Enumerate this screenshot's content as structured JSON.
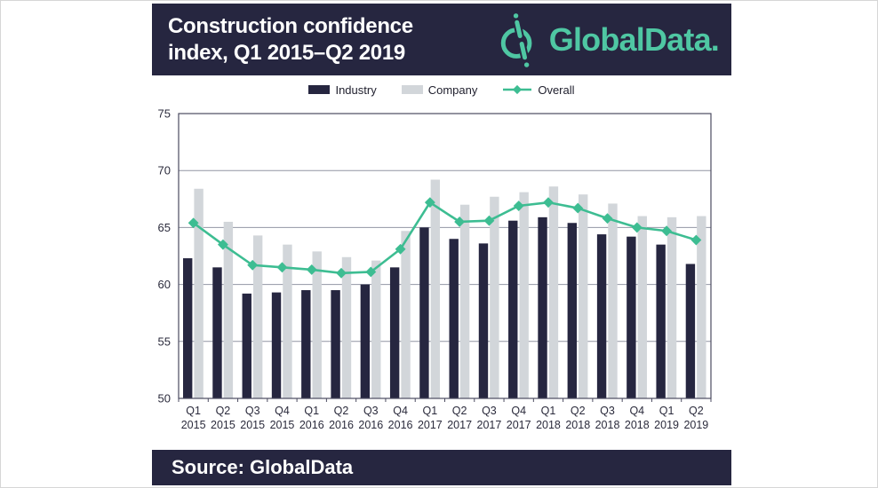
{
  "header": {
    "title": "Construction confidence\nindex, Q1 2015–Q2 2019",
    "brand": "GlobalData."
  },
  "footer": {
    "source": "Source: GlobalData"
  },
  "colors": {
    "navy": "#262640",
    "logo_teal": "#4fc7a3",
    "line_teal": "#3dbd92",
    "bar_industry": "#262640",
    "bar_company": "#d2d6da",
    "gridline": "#9296a4",
    "axis": "#4b4b60",
    "text": "#2b2b3c"
  },
  "chart_data": {
    "type": "bar",
    "subtype": "grouped bars with overlay line",
    "title": "Construction confidence index, Q1 2015–Q2 2019",
    "xlabel": "",
    "ylabel": "",
    "ylim": [
      50,
      75
    ],
    "ytick_step": 5,
    "grid": "horizontal",
    "legend_position": "top-center",
    "categories": [
      "Q1 2015",
      "Q2 2015",
      "Q3 2015",
      "Q4 2015",
      "Q1 2016",
      "Q2 2016",
      "Q3 2016",
      "Q4 2016",
      "Q1 2017",
      "Q2 2017",
      "Q3 2017",
      "Q4 2017",
      "Q1 2018",
      "Q2 2018",
      "Q3 2018",
      "Q4 2018",
      "Q1 2019",
      "Q2 2019"
    ],
    "series": [
      {
        "name": "Industry",
        "type": "bar",
        "color": "#262640",
        "values": [
          62.3,
          61.5,
          59.2,
          59.3,
          59.5,
          59.5,
          60.0,
          61.5,
          65.0,
          64.0,
          63.6,
          65.6,
          65.9,
          65.4,
          64.4,
          64.2,
          63.5,
          61.8
        ]
      },
      {
        "name": "Company",
        "type": "bar",
        "color": "#d2d6da",
        "values": [
          68.4,
          65.5,
          64.3,
          63.5,
          62.9,
          62.4,
          62.1,
          64.7,
          69.2,
          67.0,
          67.7,
          68.1,
          68.6,
          67.9,
          67.1,
          66.0,
          65.9,
          66.0
        ]
      },
      {
        "name": "Overall",
        "type": "line",
        "marker": "diamond",
        "color": "#3dbd92",
        "values": [
          65.4,
          63.5,
          61.7,
          61.5,
          61.3,
          61.0,
          61.1,
          63.1,
          67.2,
          65.5,
          65.6,
          66.9,
          67.2,
          66.7,
          65.8,
          65.0,
          64.7,
          63.9
        ]
      }
    ]
  }
}
